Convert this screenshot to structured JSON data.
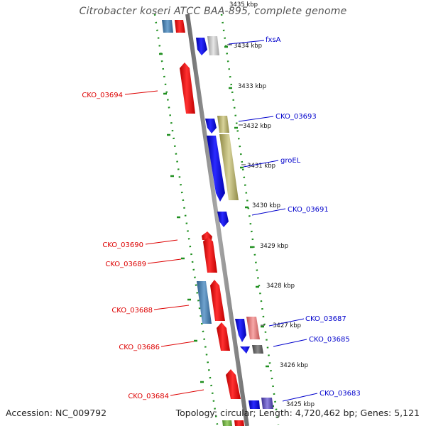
{
  "title": "Citrobacter koseri ATCC BAA-895, complete genome",
  "footer": {
    "accession": "Accession: NC_009792",
    "summary": "Topology: circular; Length: 4,720,462 bp; Genes: 5,121"
  },
  "colors": {
    "backbone": "#8a8a8a",
    "outer_ring": "#1f8f1f",
    "reverse_strand": "#ff0000",
    "forward_strand": "#0000ee",
    "gene_label_reverse": "#dd0000",
    "gene_label_forward": "#0000cc",
    "cds_steel": "#4682b4",
    "cds_khaki": "#bdb76b",
    "cds_gray": "#bdbdbd",
    "cds_pink": "#f08080",
    "cds_darkgray": "#666666",
    "cds_purple": "#6a5acd"
  },
  "ticks": [
    "3435 kbp",
    "3434 kbp",
    "3433 kbp",
    "3432 kbp",
    "3431 kbp",
    "3430 kbp",
    "3429 kbp",
    "3428 kbp",
    "3427 kbp",
    "3426 kbp",
    "3425 kbp"
  ],
  "gene_labels": {
    "reverse": [
      "CKO_03694",
      "CKO_03690",
      "CKO_03689",
      "CKO_03688",
      "CKO_03686",
      "CKO_03684"
    ],
    "forward": [
      "fxsA",
      "CKO_03693",
      "groEL",
      "CKO_03691",
      "CKO_03687",
      "CKO_03685",
      "CKO_03683"
    ]
  }
}
